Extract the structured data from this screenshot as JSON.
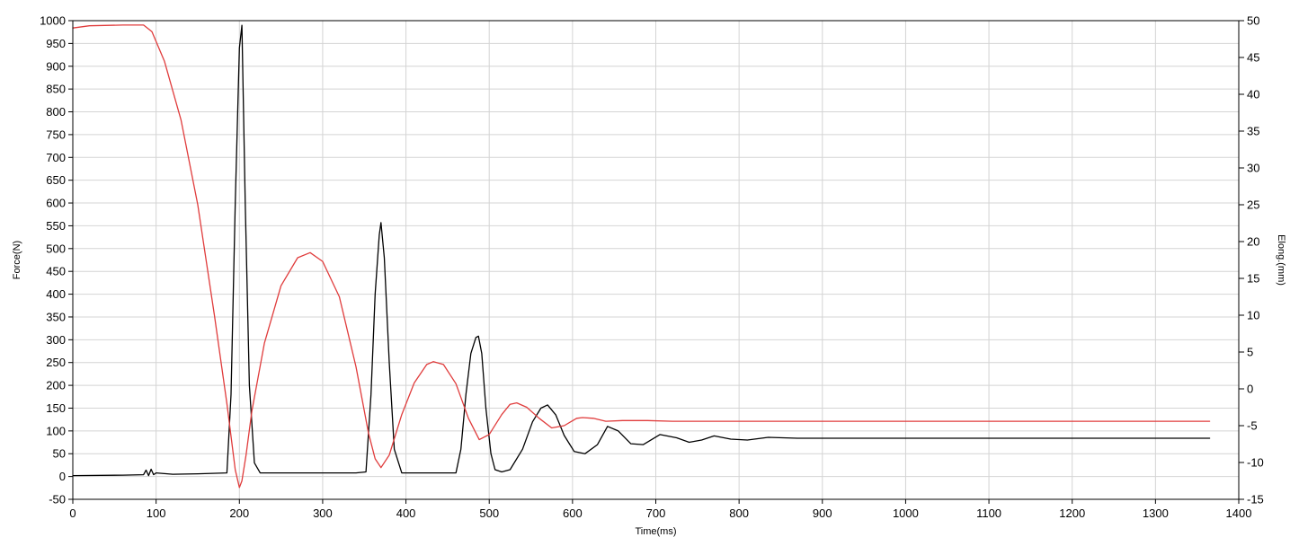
{
  "chart_data": {
    "type": "line",
    "xlabel": "Time(ms)",
    "ylabel_left": "Force(N)",
    "ylabel_right": "Elong.(mm)",
    "xlim": [
      0,
      1400
    ],
    "ylim_left": [
      -50,
      1000
    ],
    "ylim_right": [
      -15,
      50
    ],
    "x_ticks": [
      0,
      100,
      200,
      300,
      400,
      500,
      600,
      700,
      800,
      900,
      1000,
      1100,
      1200,
      1300,
      1400
    ],
    "y_left_ticks": [
      -50,
      0,
      50,
      100,
      150,
      200,
      250,
      300,
      350,
      400,
      450,
      500,
      550,
      600,
      650,
      700,
      750,
      800,
      850,
      900,
      950,
      1000
    ],
    "y_right_ticks": [
      -15,
      -10,
      -5,
      0,
      5,
      10,
      15,
      20,
      25,
      30,
      35,
      40,
      45,
      50
    ],
    "grid": true,
    "series": [
      {
        "axis": "left",
        "color": "#000000",
        "x": [
          0,
          60,
          85,
          88,
          91,
          94,
          97,
          100,
          120,
          150,
          185,
          190,
          195,
          200,
          203,
          207,
          212,
          218,
          225,
          280,
          340,
          352,
          358,
          363,
          368,
          370,
          374,
          380,
          386,
          395,
          430,
          460,
          466,
          472,
          478,
          484,
          487,
          491,
          496,
          502,
          507,
          515,
          525,
          540,
          552,
          562,
          570,
          580,
          590,
          602,
          615,
          630,
          642,
          655,
          670,
          685,
          705,
          725,
          740,
          755,
          770,
          790,
          810,
          835,
          870,
          950,
          1100,
          1250,
          1365
        ],
        "y": [
          2,
          3,
          4,
          14,
          2,
          16,
          4,
          8,
          5,
          6,
          8,
          180,
          600,
          940,
          990,
          600,
          200,
          30,
          8,
          8,
          8,
          10,
          180,
          400,
          530,
          557,
          480,
          250,
          60,
          8,
          8,
          8,
          60,
          180,
          270,
          305,
          308,
          270,
          150,
          50,
          15,
          10,
          15,
          60,
          120,
          150,
          157,
          135,
          90,
          55,
          50,
          70,
          110,
          100,
          72,
          70,
          92,
          85,
          75,
          80,
          89,
          82,
          80,
          86,
          84,
          84,
          84,
          84,
          84
        ]
      },
      {
        "axis": "right",
        "color": "#e03c3c",
        "x": [
          0,
          20,
          60,
          85,
          95,
          110,
          130,
          150,
          170,
          185,
          195,
          200,
          203,
          208,
          215,
          230,
          250,
          270,
          285,
          300,
          320,
          340,
          355,
          363,
          370,
          380,
          395,
          410,
          425,
          433,
          445,
          460,
          475,
          488,
          500,
          515,
          525,
          533,
          545,
          560,
          575,
          590,
          605,
          612,
          625,
          640,
          660,
          690,
          720,
          760,
          800,
          900,
          1000,
          1100,
          1200,
          1300,
          1365
        ],
        "y": [
          49,
          49.3,
          49.4,
          49.4,
          48.5,
          44.5,
          36.5,
          25,
          10,
          -2,
          -11,
          -13.4,
          -12.5,
          -9,
          -3,
          6.2,
          14,
          17.8,
          18.5,
          17.3,
          12.5,
          3,
          -6,
          -9.5,
          -10.7,
          -9,
          -3.5,
          0.8,
          3.3,
          3.7,
          3.3,
          0.7,
          -4,
          -6.9,
          -6.2,
          -3.5,
          -2.1,
          -1.9,
          -2.5,
          -4,
          -5.3,
          -5,
          -4,
          -3.9,
          -4,
          -4.4,
          -4.3,
          -4.3,
          -4.4,
          -4.4,
          -4.4,
          -4.4,
          -4.4,
          -4.4,
          -4.4,
          -4.4,
          -4.4
        ]
      }
    ]
  }
}
